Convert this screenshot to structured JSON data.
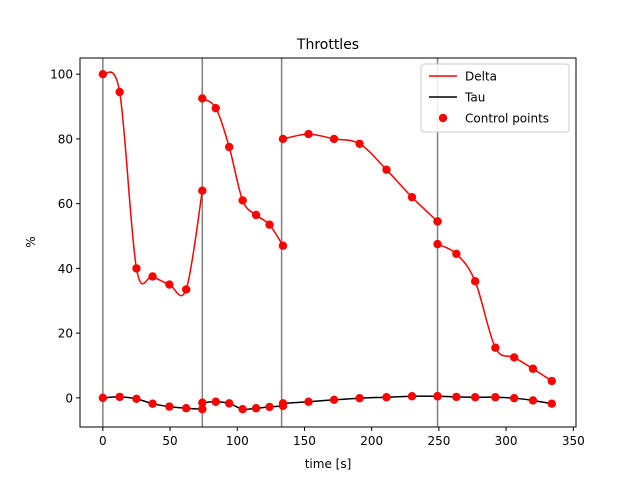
{
  "chart_data": {
    "type": "line",
    "title": "Throttles",
    "xlabel": "time [s]",
    "ylabel": "%",
    "xlim": [
      -17,
      352
    ],
    "ylim": [
      -9,
      105
    ],
    "xticks": [
      0,
      50,
      100,
      150,
      200,
      250,
      300,
      350
    ],
    "yticks": [
      0,
      20,
      40,
      60,
      80,
      100
    ],
    "vlines": [
      0,
      74,
      133,
      249
    ],
    "legend_position": "top-right",
    "legend": [
      {
        "label": "Delta",
        "kind": "line",
        "color": "#ff0000"
      },
      {
        "label": "Tau",
        "kind": "line",
        "color": "#000000"
      },
      {
        "label": "Control points",
        "kind": "marker",
        "color": "#ff0000"
      }
    ],
    "series": [
      {
        "name": "Delta",
        "color": "#ff0000",
        "segments": [
          [
            [
              0,
              100
            ],
            [
              12.5,
              94.5
            ],
            [
              25,
              40
            ],
            [
              37,
              37.5
            ],
            [
              49.5,
              35
            ],
            [
              62,
              33.5
            ],
            [
              74,
              64
            ]
          ],
          [
            [
              74,
              92.5
            ],
            [
              84,
              89.5
            ],
            [
              94,
              77.5
            ],
            [
              104,
              61
            ],
            [
              114,
              56.5
            ],
            [
              124,
              53.5
            ],
            [
              134,
              47
            ]
          ],
          [
            [
              134,
              80
            ],
            [
              153,
              81.5
            ],
            [
              172,
              80
            ],
            [
              191,
              78.5
            ],
            [
              211,
              70.5
            ],
            [
              230,
              62
            ],
            [
              249,
              54.5
            ]
          ],
          [
            [
              249,
              54.5
            ]
          ],
          [
            [
              249,
              47.5
            ],
            [
              263,
              44.5
            ],
            [
              277,
              36
            ],
            [
              292,
              15.5
            ],
            [
              306,
              12.5
            ],
            [
              320,
              9
            ],
            [
              334,
              5.2
            ]
          ]
        ]
      },
      {
        "name": "Tau",
        "color": "#000000",
        "segments": [
          [
            [
              0,
              0
            ],
            [
              12.5,
              0.3
            ],
            [
              25,
              -0.3
            ],
            [
              37,
              -1.8
            ],
            [
              49.5,
              -2.7
            ],
            [
              62,
              -3.2
            ],
            [
              74,
              -3.5
            ]
          ],
          [
            [
              74,
              -1.5
            ],
            [
              84,
              -1.2
            ],
            [
              94,
              -1.7
            ],
            [
              104,
              -3.5
            ],
            [
              114,
              -3.2
            ],
            [
              124,
              -2.8
            ],
            [
              134,
              -2.5
            ]
          ],
          [
            [
              134,
              -1.7
            ],
            [
              153,
              -1.2
            ],
            [
              172,
              -0.6
            ],
            [
              191,
              -0.1
            ],
            [
              211,
              0.2
            ],
            [
              230,
              0.5
            ],
            [
              249,
              0.5
            ]
          ],
          [
            [
              249,
              0.5
            ],
            [
              263,
              0.3
            ],
            [
              277,
              0.2
            ],
            [
              292,
              0.2
            ],
            [
              306,
              -0.1
            ],
            [
              320,
              -0.8
            ],
            [
              334,
              -1.8
            ]
          ]
        ]
      }
    ]
  }
}
